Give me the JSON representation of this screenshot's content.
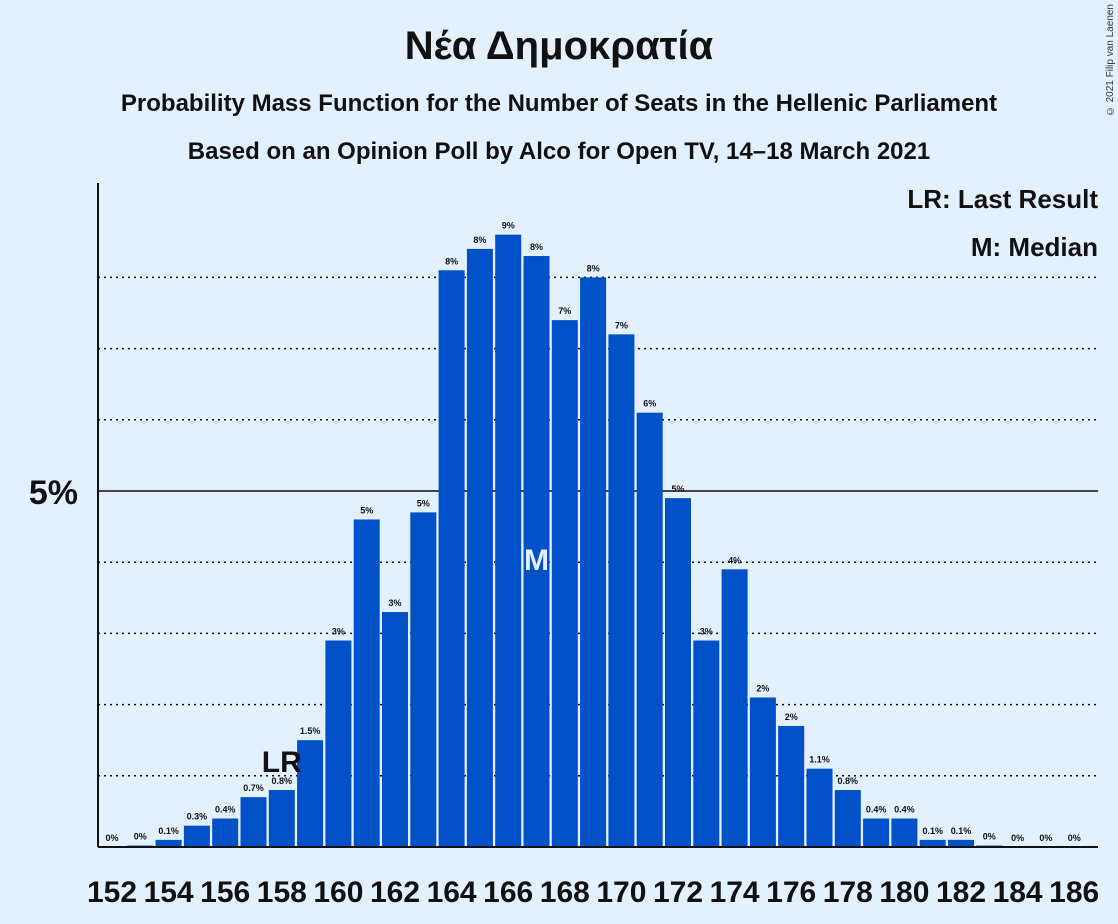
{
  "title": "Νέα Δημοκρατία",
  "subtitle": "Probability Mass Function for the Number of Seats in the Hellenic Parliament",
  "subtitle2": "Based on an Opinion Poll by Alco for Open TV, 14–18 March 2021",
  "copyright": "© 2021 Filip van Laenen",
  "legend": {
    "lr": "LR: Last Result",
    "m": "M: Median"
  },
  "colors": {
    "bar": "#0050c8",
    "background": "#e3f0fd",
    "text": "#111111"
  },
  "chart_data": {
    "type": "bar",
    "categories": [
      152,
      153,
      154,
      155,
      156,
      157,
      158,
      159,
      160,
      161,
      162,
      163,
      164,
      165,
      166,
      167,
      168,
      169,
      170,
      171,
      172,
      173,
      174,
      175,
      176,
      177,
      178,
      179,
      180,
      181,
      182,
      183,
      184,
      185,
      186
    ],
    "values": [
      0.0,
      0.02,
      0.1,
      0.3,
      0.4,
      0.7,
      0.8,
      1.5,
      2.9,
      4.6,
      3.3,
      4.7,
      8.1,
      8.4,
      8.6,
      8.3,
      7.4,
      8.0,
      7.2,
      6.1,
      4.9,
      2.9,
      3.9,
      2.1,
      1.7,
      1.1,
      0.8,
      0.4,
      0.4,
      0.1,
      0.1,
      0.02,
      0.0,
      0.0,
      0.0
    ],
    "labels": [
      "0%",
      "0%",
      "0.1%",
      "0.3%",
      "0.4%",
      "0.7%",
      "0.8%",
      "1.5%",
      "3%",
      "5%",
      "3%",
      "5%",
      "8%",
      "8%",
      "9%",
      "8%",
      "7%",
      "8%",
      "7%",
      "6%",
      "5%",
      "3%",
      "4%",
      "2%",
      "2%",
      "1.1%",
      "0.8%",
      "0.4%",
      "0.4%",
      "0.1%",
      "0.1%",
      "0%",
      "0%",
      "0%",
      "0%"
    ],
    "x_tick_labels": [
      152,
      154,
      156,
      158,
      160,
      162,
      164,
      166,
      168,
      170,
      172,
      174,
      176,
      178,
      180,
      182,
      184,
      186
    ],
    "y_tick_labels": [
      {
        "value": 5,
        "label": "5%"
      }
    ],
    "ylim": [
      0,
      9.3
    ],
    "gridlines_dotted": [
      1,
      2,
      3,
      4,
      6,
      7,
      8
    ],
    "gridline_solid": 5,
    "last_result": {
      "seat": 158,
      "label": "LR"
    },
    "median": {
      "seat": 167,
      "label": "M"
    }
  }
}
